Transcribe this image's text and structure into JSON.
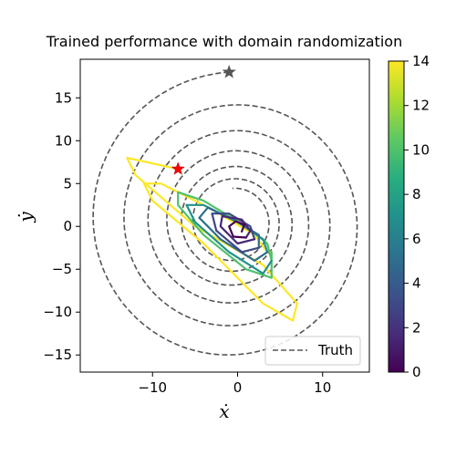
{
  "chart_data": {
    "type": "line",
    "title": "Trained performance with domain randomization",
    "xlabel": "ẋ",
    "ylabel": "ẏ",
    "xlim": [
      -18.5,
      15.5
    ],
    "ylim": [
      -17,
      19.5
    ],
    "xticks": [
      -10,
      0,
      10
    ],
    "yticks": [
      -15,
      -10,
      -5,
      0,
      5,
      10,
      15
    ],
    "grid": false,
    "legend": {
      "placement": "lower-right",
      "entries": [
        {
          "label": "Truth",
          "style": "dashed",
          "color": "#555555"
        }
      ]
    },
    "colorbar": {
      "colormap": "viridis",
      "min": 0,
      "max": 14,
      "ticks": [
        0,
        2,
        4,
        6,
        8,
        10,
        12,
        14
      ]
    },
    "truth_series": {
      "name": "Truth",
      "color": "#555555",
      "start": {
        "x": -1,
        "y": 18,
        "marker": "star",
        "color": "#555555"
      },
      "center": {
        "x": -0.5,
        "y": 0.5
      },
      "decay_per_turn": 0.78
    },
    "trained_series": {
      "colored_by": "time",
      "t_range": [
        0,
        14
      ],
      "start": {
        "x": -7,
        "y": 6.7,
        "marker": "star",
        "color": "#ff0000"
      },
      "loops": [
        {
          "t": 14,
          "points": [
            [
              -7,
              6.7
            ],
            [
              -13,
              8
            ],
            [
              -12,
              6
            ],
            [
              -5,
              0
            ],
            [
              3,
              -4.5
            ],
            [
              7,
              -9
            ],
            [
              6.5,
              -11
            ],
            [
              3,
              -9
            ],
            [
              -4,
              -2
            ],
            [
              -10,
              3
            ],
            [
              -11,
              5
            ],
            [
              -9,
              5
            ],
            [
              -3,
              2
            ],
            [
              2,
              -1
            ],
            [
              3.5,
              -3
            ],
            [
              4,
              -3
            ]
          ]
        },
        {
          "t": 10,
          "points": [
            [
              4,
              -3
            ],
            [
              4,
              -6
            ],
            [
              1,
              -5
            ],
            [
              -4,
              -1
            ],
            [
              -7,
              2.5
            ],
            [
              -7,
              4
            ],
            [
              -4,
              3
            ],
            [
              1,
              0
            ],
            [
              3.5,
              -2
            ],
            [
              4,
              -4
            ]
          ]
        },
        {
          "t": 7,
          "points": [
            [
              4,
              -4
            ],
            [
              3,
              -5.5
            ],
            [
              -1,
              -3
            ],
            [
              -5,
              0.5
            ],
            [
              -6,
              2.5
            ],
            [
              -4,
              2.5
            ],
            [
              0,
              0.5
            ],
            [
              3,
              -1.5
            ],
            [
              3.5,
              -3
            ]
          ]
        },
        {
          "t": 5,
          "points": [
            [
              3.5,
              -3
            ],
            [
              2,
              -4
            ],
            [
              -2,
              -1.5
            ],
            [
              -4.5,
              1
            ],
            [
              -3.5,
              2.2
            ],
            [
              0,
              0.5
            ],
            [
              2.5,
              -1
            ],
            [
              2.5,
              -2.5
            ]
          ]
        },
        {
          "t": 3,
          "points": [
            [
              2.5,
              -2.5
            ],
            [
              0.5,
              -3
            ],
            [
              -2.5,
              -0.5
            ],
            [
              -3,
              1.5
            ],
            [
              -1,
              1.5
            ],
            [
              1.5,
              0
            ],
            [
              2,
              -1.5
            ]
          ]
        },
        {
          "t": 1.5,
          "points": [
            [
              2,
              -1.5
            ],
            [
              0,
              -2
            ],
            [
              -2,
              0
            ],
            [
              -1.8,
              1.2
            ],
            [
              0.5,
              0.8
            ],
            [
              1.5,
              -0.5
            ],
            [
              1,
              -1.3
            ]
          ]
        },
        {
          "t": 0,
          "points": [
            [
              1,
              -1.3
            ],
            [
              -0.5,
              -1.2
            ],
            [
              -1,
              0
            ],
            [
              -0.2,
              0.6
            ],
            [
              0.8,
              0.2
            ],
            [
              0.5,
              -0.6
            ]
          ]
        }
      ]
    }
  }
}
